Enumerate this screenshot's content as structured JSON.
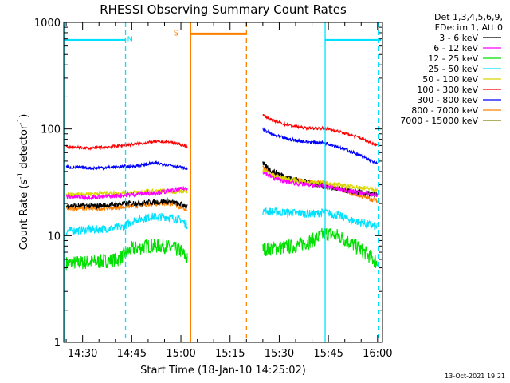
{
  "chart_data": {
    "type": "line",
    "title": "RHESSI Observing Summary Count Rates",
    "xlabel": "Start Time (18-Jan-10 14:25:02)",
    "ylabel_main": "Count Rate (s",
    "ylabel_sup1": "-1",
    "ylabel_mid": " detector",
    "ylabel_sup2": "-1",
    "ylabel_end": ")",
    "x_range_min": [
      24.25,
      121.5
    ],
    "x_ticks": [
      {
        "value": 30,
        "label": "14:30"
      },
      {
        "value": 45,
        "label": "14:45"
      },
      {
        "value": 60,
        "label": "15:00"
      },
      {
        "value": 75,
        "label": "15:15"
      },
      {
        "value": 90,
        "label": "15:30"
      },
      {
        "value": 105,
        "label": "15:45"
      },
      {
        "value": 120,
        "label": "16:00"
      }
    ],
    "y_scale": "log",
    "y_range": [
      1,
      1000
    ],
    "y_ticks": [
      {
        "value": 1,
        "label": "1"
      },
      {
        "value": 10,
        "label": "10"
      },
      {
        "value": 100,
        "label": "100"
      },
      {
        "value": 1000,
        "label": "1000"
      }
    ],
    "legend_position": "right",
    "legend_header": [
      "Det 1,3,4,5,6,9,",
      "FDecim 1, Att 0"
    ],
    "series": [
      {
        "name": "3 - 6 keV",
        "color": "#000000",
        "seg1": [
          [
            25,
            19
          ],
          [
            35,
            19
          ],
          [
            43,
            20
          ],
          [
            50,
            20.5
          ],
          [
            56,
            21
          ],
          [
            62,
            19
          ]
        ],
        "seg2": [
          [
            85,
            47
          ],
          [
            88,
            40
          ],
          [
            91,
            37
          ],
          [
            94,
            34
          ],
          [
            100,
            31
          ],
          [
            106,
            28
          ],
          [
            112,
            26
          ],
          [
            120,
            24
          ]
        ]
      },
      {
        "name": "6 - 12 keV",
        "color": "#ff00ff",
        "seg1": [
          [
            25,
            23
          ],
          [
            35,
            23
          ],
          [
            43,
            24
          ],
          [
            50,
            25
          ],
          [
            56,
            26
          ],
          [
            62,
            28
          ]
        ],
        "seg2": [
          [
            85,
            40
          ],
          [
            88,
            35
          ],
          [
            92,
            32
          ],
          [
            98,
            30
          ],
          [
            104,
            29
          ],
          [
            112,
            26
          ],
          [
            120,
            24
          ]
        ]
      },
      {
        "name": "12 - 25 keV",
        "color": "#00e000",
        "seg1": [
          [
            25,
            5.5
          ],
          [
            35,
            5.7
          ],
          [
            41,
            6
          ],
          [
            45,
            7.5
          ],
          [
            50,
            8
          ],
          [
            55,
            8
          ],
          [
            60,
            7.2
          ],
          [
            62,
            6
          ]
        ],
        "seg2": [
          [
            85,
            7.5
          ],
          [
            90,
            7.7
          ],
          [
            95,
            8
          ],
          [
            100,
            9
          ],
          [
            104,
            10.5
          ],
          [
            108,
            10
          ],
          [
            112,
            8.5
          ],
          [
            116,
            7
          ],
          [
            120,
            5.5
          ]
        ]
      },
      {
        "name": "25 - 50 keV",
        "color": "#00e0ff",
        "seg1": [
          [
            25,
            11
          ],
          [
            35,
            11.5
          ],
          [
            42,
            12
          ],
          [
            46,
            14
          ],
          [
            51,
            15
          ],
          [
            56,
            15
          ],
          [
            60,
            14
          ],
          [
            62,
            12.5
          ]
        ],
        "seg2": [
          [
            85,
            17
          ],
          [
            92,
            16.5
          ],
          [
            100,
            16
          ],
          [
            104,
            16.5
          ],
          [
            108,
            15.5
          ],
          [
            112,
            14
          ],
          [
            116,
            13
          ],
          [
            120,
            12
          ]
        ]
      },
      {
        "name": "50 - 100 keV",
        "color": "#d8d800",
        "seg1": [
          [
            25,
            24
          ],
          [
            35,
            25
          ],
          [
            43,
            25
          ],
          [
            50,
            26
          ],
          [
            56,
            26
          ],
          [
            62,
            26
          ]
        ],
        "seg2": [
          [
            85,
            41
          ],
          [
            88,
            37
          ],
          [
            92,
            34
          ],
          [
            98,
            32
          ],
          [
            104,
            31
          ],
          [
            112,
            29
          ],
          [
            120,
            27
          ]
        ]
      },
      {
        "name": "100 - 300 keV",
        "color": "#ff0000",
        "seg1": [
          [
            25,
            68
          ],
          [
            32,
            66
          ],
          [
            38,
            68
          ],
          [
            46,
            72
          ],
          [
            52,
            76
          ],
          [
            57,
            75
          ],
          [
            62,
            69
          ]
        ],
        "seg2": [
          [
            85,
            135
          ],
          [
            88,
            120
          ],
          [
            93,
            108
          ],
          [
            98,
            102
          ],
          [
            104,
            101
          ],
          [
            108,
            95
          ],
          [
            114,
            84
          ],
          [
            120,
            70
          ]
        ]
      },
      {
        "name": "300 - 800 keV",
        "color": "#0000ff",
        "seg1": [
          [
            25,
            44
          ],
          [
            33,
            43
          ],
          [
            40,
            44
          ],
          [
            46,
            45
          ],
          [
            52,
            48
          ],
          [
            57,
            46
          ],
          [
            62,
            42
          ]
        ],
        "seg2": [
          [
            85,
            100
          ],
          [
            88,
            88
          ],
          [
            93,
            80
          ],
          [
            98,
            76
          ],
          [
            104,
            74
          ],
          [
            108,
            68
          ],
          [
            114,
            58
          ],
          [
            120,
            47
          ]
        ]
      },
      {
        "name": "800 - 7000 keV",
        "color": "#ff8000",
        "seg1": [
          [
            25,
            18
          ],
          [
            35,
            18
          ],
          [
            42,
            18.5
          ],
          [
            46,
            19
          ],
          [
            52,
            20
          ],
          [
            57,
            20
          ],
          [
            62,
            17.5
          ]
        ],
        "seg2": [
          [
            85,
            44
          ],
          [
            88,
            38
          ],
          [
            92,
            34
          ],
          [
            98,
            32
          ],
          [
            104,
            31
          ],
          [
            112,
            25
          ],
          [
            120,
            21
          ]
        ]
      },
      {
        "name": "7000 - 15000 keV",
        "color": "#808000",
        "seg1": [],
        "seg2": []
      }
    ],
    "flags": [
      {
        "label": "N",
        "color": "#00e0ff",
        "bars": [
          [
            24.25,
            43
          ],
          [
            104,
            121
          ]
        ],
        "level": 680,
        "label_x": 44.5
      },
      {
        "label": "S",
        "color": "#ff8000",
        "bars": [
          [
            63,
            80
          ]
        ],
        "level": 780,
        "label_x": 58.5
      }
    ],
    "vlines": [
      {
        "x": 24.3,
        "color": "#00e0ff",
        "style": "solid"
      },
      {
        "x": 43.1,
        "color": "#00e0ff",
        "style": "dashed"
      },
      {
        "x": 63.0,
        "color": "#ff8000",
        "style": "solid"
      },
      {
        "x": 80.0,
        "color": "#ff8000",
        "style": "dashed"
      },
      {
        "x": 104.0,
        "color": "#00e0ff",
        "style": "solid"
      },
      {
        "x": 120.2,
        "color": "#00e0ff",
        "style": "dashed"
      }
    ],
    "timestamp": "13-Oct-2021 19:21"
  }
}
